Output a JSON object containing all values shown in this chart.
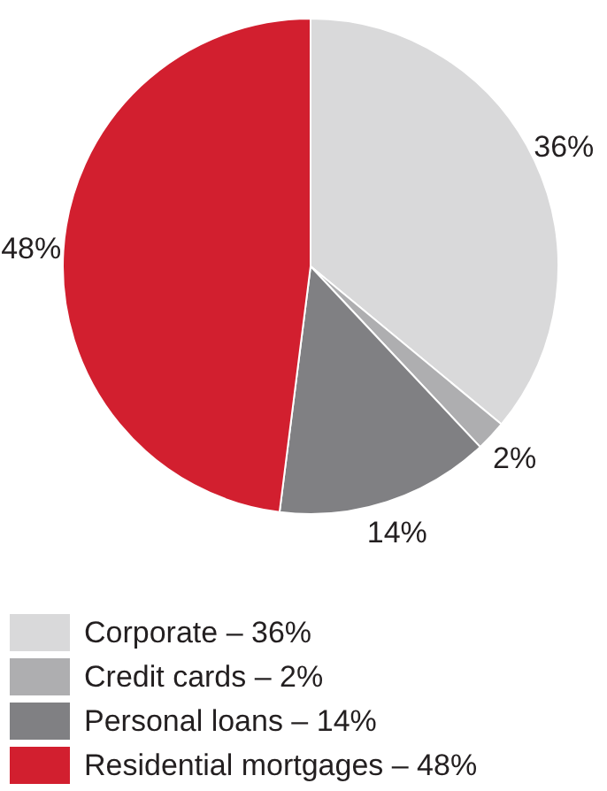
{
  "chart_data": {
    "type": "pie",
    "categories": [
      "Corporate – 36%",
      "Credit cards – 2%",
      "Personal loans – 14%",
      "Residential mortgages – 48%"
    ],
    "values": [
      36,
      2,
      14,
      48
    ],
    "colors": [
      "#d9d9da",
      "#aeaeb0",
      "#808083",
      "#d21f2f"
    ],
    "value_labels": [
      "36%",
      "2%",
      "14%",
      "48%"
    ],
    "legend": "bottom"
  }
}
